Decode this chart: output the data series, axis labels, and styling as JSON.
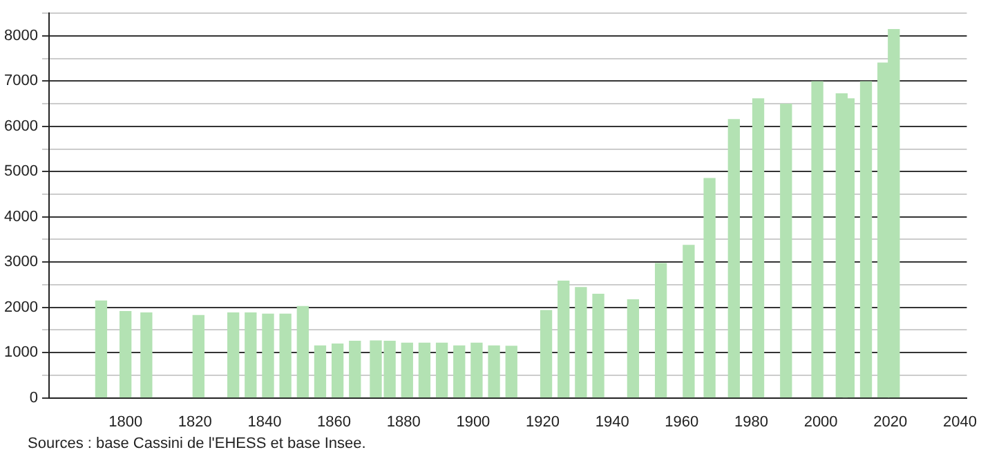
{
  "chart_data": {
    "type": "bar",
    "x": [
      1793,
      1800,
      1806,
      1821,
      1831,
      1836,
      1841,
      1846,
      1851,
      1856,
      1861,
      1866,
      1872,
      1876,
      1881,
      1886,
      1891,
      1896,
      1901,
      1906,
      1911,
      1921,
      1926,
      1931,
      1936,
      1946,
      1954,
      1962,
      1968,
      1975,
      1982,
      1990,
      1999,
      2006,
      2008,
      2013,
      2018,
      2021
    ],
    "values": [
      2140,
      1910,
      1880,
      1820,
      1880,
      1880,
      1850,
      1850,
      2020,
      1150,
      1190,
      1250,
      1260,
      1250,
      1210,
      1210,
      1210,
      1150,
      1210,
      1150,
      1140,
      1930,
      2580,
      2440,
      2290,
      2170,
      2970,
      3370,
      4850,
      6150,
      6610,
      6490,
      6990,
      6720,
      6610,
      6990,
      7400,
      8140
    ],
    "color": "#b3e2b3",
    "xlim": [
      1778,
      2042
    ],
    "xticks": [
      1800,
      1820,
      1840,
      1860,
      1880,
      1900,
      1920,
      1940,
      1960,
      1980,
      2000,
      2020,
      2040
    ],
    "ylim": [
      0,
      8500
    ],
    "yticks": [
      0,
      {
        "value": 500,
        "label": null
      },
      1000,
      {
        "value": 1500,
        "label": null
      },
      2000,
      {
        "value": 2500,
        "label": null
      },
      3000,
      {
        "value": 3500,
        "label": null
      },
      4000,
      {
        "value": 4500,
        "label": null
      },
      5000,
      {
        "value": 5500,
        "label": null
      },
      6000,
      {
        "value": 6500,
        "label": null
      },
      7000,
      {
        "value": 7500,
        "label": null
      },
      8000,
      {
        "value": 8500,
        "label": null
      }
    ],
    "grid": "y",
    "legend": false,
    "annotations": [
      "Sources : base Cassini de l'EHESS et base Insee."
    ]
  }
}
